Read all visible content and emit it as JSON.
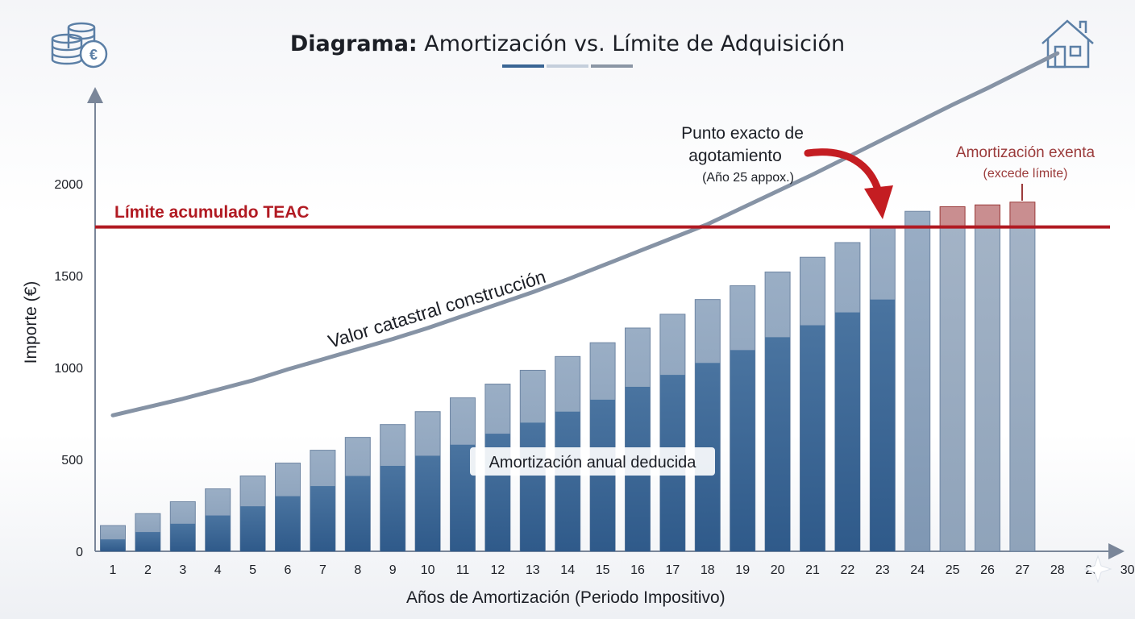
{
  "title": {
    "bold": "Diagrama:",
    "rest": " Amortización vs. Límite de Adquisición"
  },
  "icons": {
    "left": "coins-euro-icon",
    "right": "house-icon"
  },
  "colors": {
    "deducted_dark": "#3a6594",
    "cumulative_light": "#8ea3bc",
    "exempt_fill": "#9fb0c4",
    "exempt_top": "#c98e90",
    "limit_line": "#b11a22",
    "curve": "#8693a5",
    "arrow": "#c41d22"
  },
  "chart_data": {
    "type": "bar",
    "title": "Diagrama: Amortización vs. Límite de Adquisición",
    "xlabel": "Años de Amortización (Periodo Impositivo)",
    "ylabel": "Importe (€)",
    "ylim": [
      0,
      2500
    ],
    "y_ticks": [
      0,
      500,
      1000,
      1500,
      2000
    ],
    "categories": [
      "1",
      "2",
      "3",
      "4",
      "5",
      "6",
      "7",
      "8",
      "9",
      "10",
      "11",
      "12",
      "13",
      "14",
      "15",
      "16",
      "17",
      "18",
      "19",
      "20",
      "21",
      "22",
      "23",
      "24",
      "25",
      "26",
      "27",
      "28",
      "29",
      "30"
    ],
    "series": [
      {
        "name": "Amortización anual deducida",
        "values": [
          65,
          105,
          150,
          195,
          245,
          300,
          355,
          410,
          465,
          520,
          580,
          640,
          700,
          760,
          825,
          895,
          960,
          1025,
          1095,
          1165,
          1230,
          1300,
          1370,
          null,
          null,
          null,
          null,
          null,
          null,
          null
        ]
      },
      {
        "values": [
          140,
          205,
          270,
          340,
          410,
          480,
          550,
          620,
          690,
          760,
          835,
          910,
          985,
          1060,
          1135,
          1215,
          1290,
          1370,
          1445,
          1520,
          1600,
          1680,
          1760,
          1850,
          1875,
          1885,
          1900,
          null,
          null,
          null
        ]
      }
    ],
    "limit": {
      "label": "Límite acumulado TEAC",
      "value": 1765
    },
    "curve": {
      "label": "Valor catastral construcción",
      "x": [
        1,
        2,
        3,
        4,
        5,
        6,
        7,
        8,
        9,
        10,
        11,
        12,
        13,
        14,
        15,
        16,
        17,
        18,
        19,
        20,
        21,
        22,
        23,
        24,
        25,
        26,
        27,
        28
      ],
      "values": [
        740,
        785,
        830,
        880,
        930,
        990,
        1045,
        1100,
        1155,
        1215,
        1280,
        1345,
        1410,
        1480,
        1555,
        1630,
        1705,
        1780,
        1870,
        1960,
        2050,
        2145,
        2240,
        2335,
        2430,
        2520,
        2615,
        2710
      ]
    },
    "annotations": [
      {
        "text": "Punto exacto de",
        "line2": "agotamiento",
        "sub": "(Año 25 appox.)"
      },
      {
        "text": "Amortización exenta",
        "sub": "(excede límite)"
      },
      {
        "text": "Amortización anual deducida"
      }
    ]
  }
}
